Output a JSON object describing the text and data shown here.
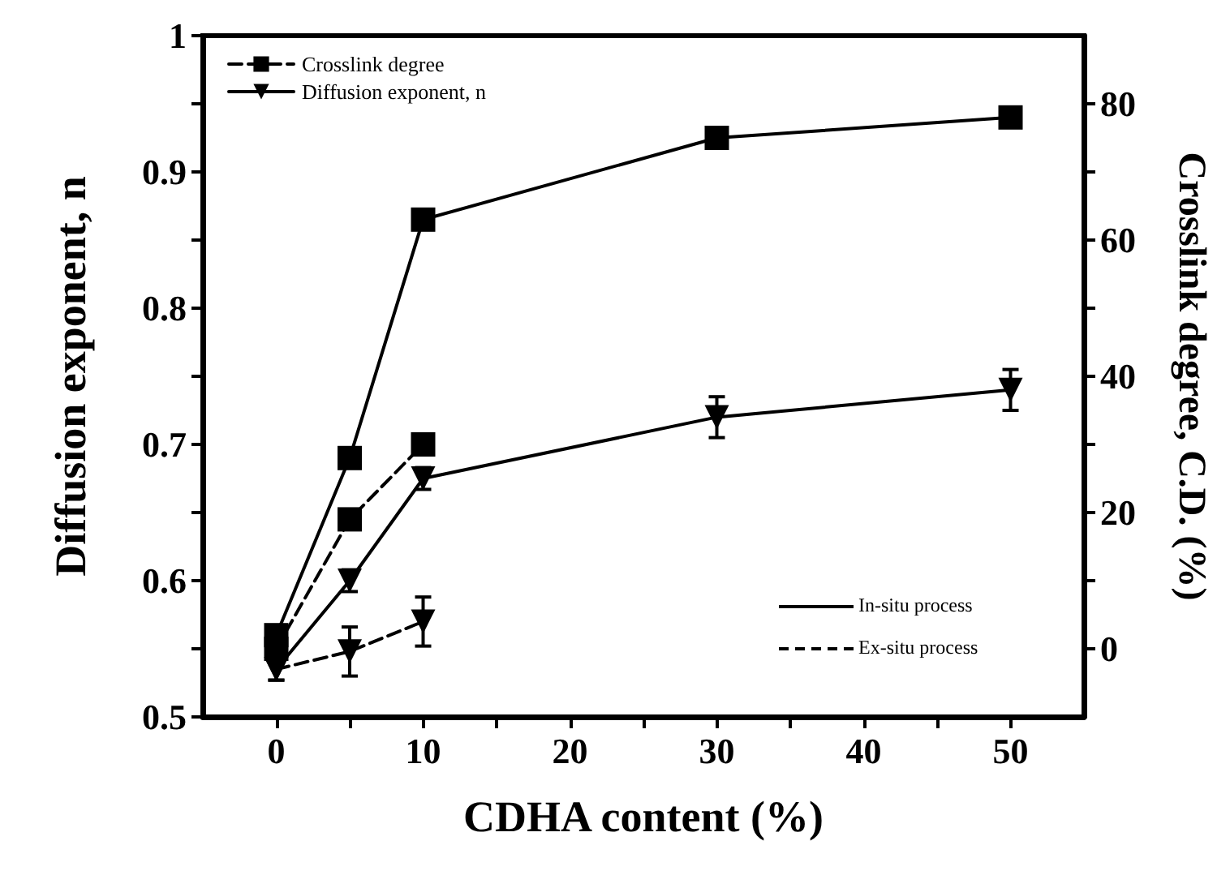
{
  "chart_data": {
    "type": "line",
    "xlabel": "CDHA content (%)",
    "ylabel": "Diffusion exponent, n",
    "y2label": "Crosslink degree, C.D. (%)",
    "xlim": [
      -5,
      55
    ],
    "xticks": [
      0,
      {
        "value": 5,
        "label": null
      },
      10,
      {
        "value": 15,
        "label": null
      },
      20,
      {
        "value": 25,
        "label": null
      },
      30,
      {
        "value": 35,
        "label": null
      },
      40,
      {
        "value": 45,
        "label": null
      },
      50
    ],
    "ylim": [
      0.5,
      1.0
    ],
    "yticks": [
      0.5,
      {
        "value": 0.55,
        "label": null
      },
      0.6,
      {
        "value": 0.65,
        "label": null
      },
      0.7,
      {
        "value": 0.75,
        "label": null
      },
      0.8,
      {
        "value": 0.85,
        "label": null
      },
      0.9,
      {
        "value": 0.95,
        "label": null
      },
      1.0
    ],
    "y2lim": [
      -10,
      90
    ],
    "y2ticks": [
      0,
      {
        "value": 10,
        "label": null
      },
      20,
      {
        "value": 30,
        "label": null
      },
      40,
      {
        "value": 50,
        "label": null
      },
      60,
      {
        "value": 70,
        "label": null
      },
      80
    ],
    "grid": false,
    "legend": "top left",
    "series": [
      {
        "color": "#000000",
        "axis": "y2",
        "marker": "square",
        "line_style": "solid",
        "x": [
          0,
          5,
          10,
          30,
          50
        ],
        "values": [
          2,
          28,
          63,
          75,
          78
        ]
      },
      {
        "name": "Crosslink degree",
        "color": "#000000",
        "axis": "y2",
        "marker": "square",
        "line_style": "dashed",
        "x": [
          0,
          5,
          10
        ],
        "values": [
          0,
          19,
          30
        ]
      },
      {
        "name": "Diffusion exponent, n",
        "color": "#000000",
        "marker": "triangle",
        "line_style": "solid",
        "x": [
          0,
          5,
          10,
          30,
          50
        ],
        "values": [
          0.535,
          0.6,
          0.675,
          0.72,
          0.74
        ],
        "errors": [
          0.008,
          0.008,
          0.008,
          0.015,
          0.015
        ]
      },
      {
        "color": "#000000",
        "marker": "triangle",
        "line_style": "dashed",
        "x": [
          0,
          5,
          10
        ],
        "values": [
          0.535,
          0.548,
          0.57
        ],
        "errors": [
          0.008,
          0.018,
          0.018
        ]
      }
    ],
    "annotations": [
      "In-situ process",
      "Ex-situ process"
    ]
  }
}
